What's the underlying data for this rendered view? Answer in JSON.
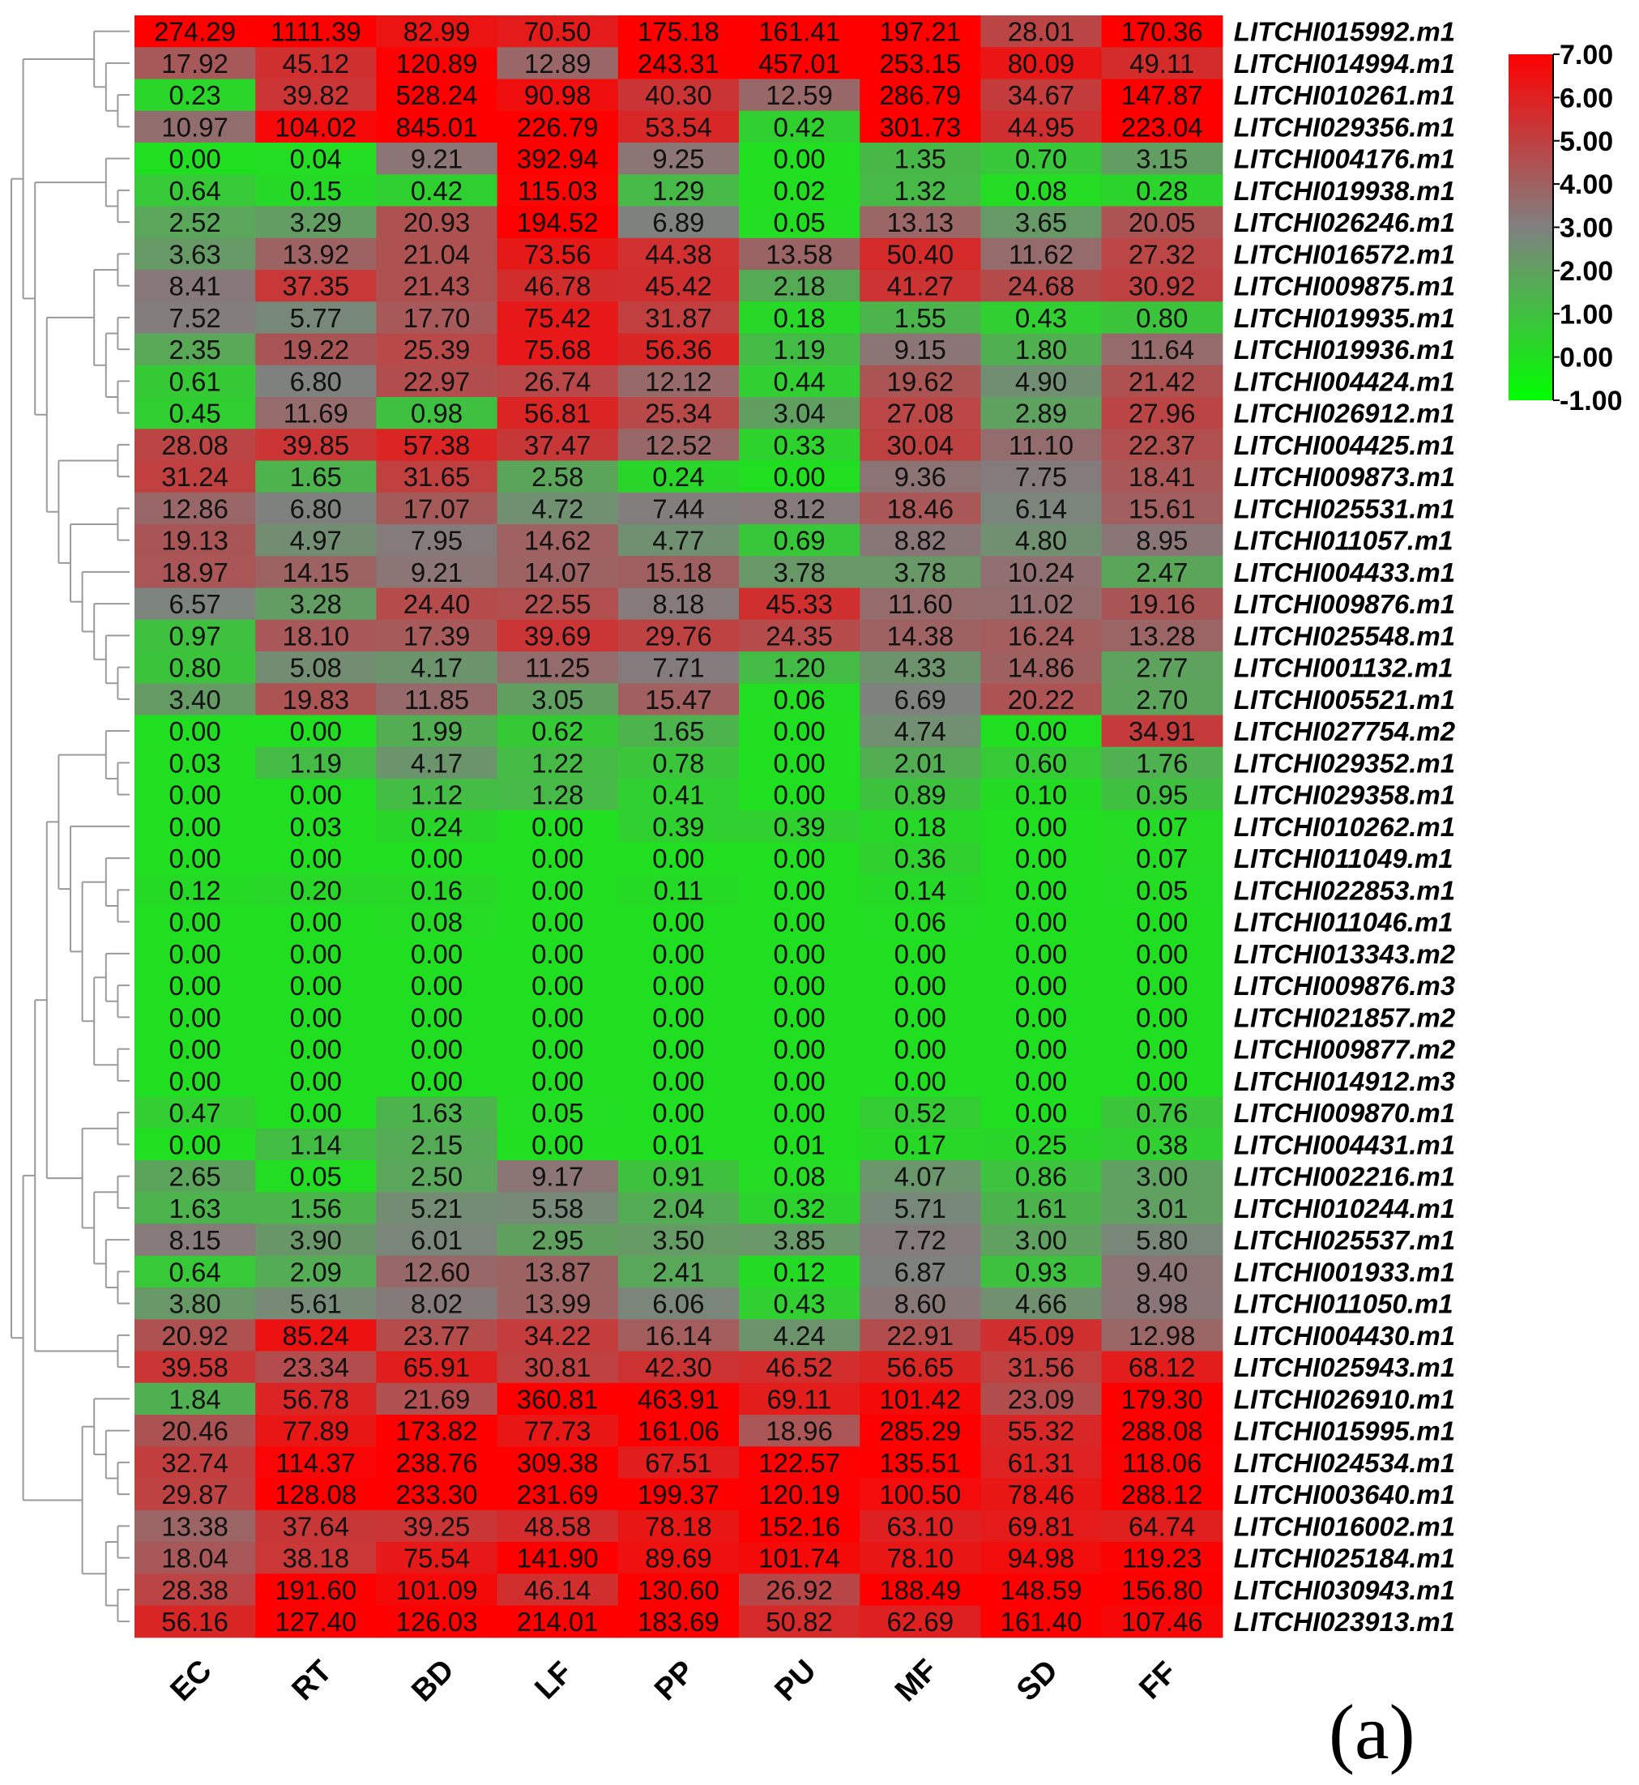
{
  "panel_label": "(a)",
  "colors": {
    "low": "#00ff00",
    "mid": "#808080",
    "high": "#ff0000",
    "tree": "#9a9a9a"
  },
  "chart_data": {
    "type": "heatmap",
    "columns": [
      "EC",
      "RT",
      "BD",
      "LF",
      "PP",
      "PU",
      "MF",
      "SD",
      "FF"
    ],
    "rows": [
      "LITCHI015992.m1",
      "LITCHI014994.m1",
      "LITCHI010261.m1",
      "LITCHI029356.m1",
      "LITCHI004176.m1",
      "LITCHI019938.m1",
      "LITCHI026246.m1",
      "LITCHI016572.m1",
      "LITCHI009875.m1",
      "LITCHI019935.m1",
      "LITCHI019936.m1",
      "LITCHI004424.m1",
      "LITCHI026912.m1",
      "LITCHI004425.m1",
      "LITCHI009873.m1",
      "LITCHI025531.m1",
      "LITCHI011057.m1",
      "LITCHI004433.m1",
      "LITCHI009876.m1",
      "LITCHI025548.m1",
      "LITCHI001132.m1",
      "LITCHI005521.m1",
      "LITCHI027754.m2",
      "LITCHI029352.m1",
      "LITCHI029358.m1",
      "LITCHI010262.m1",
      "LITCHI011049.m1",
      "LITCHI022853.m1",
      "LITCHI011046.m1",
      "LITCHI013343.m2",
      "LITCHI009876.m3",
      "LITCHI021857.m2",
      "LITCHI009877.m2",
      "LITCHI014912.m3",
      "LITCHI009870.m1",
      "LITCHI004431.m1",
      "LITCHI002216.m1",
      "LITCHI010244.m1",
      "LITCHI025537.m1",
      "LITCHI001933.m1",
      "LITCHI011050.m1",
      "LITCHI004430.m1",
      "LITCHI025943.m1",
      "LITCHI026910.m1",
      "LITCHI015995.m1",
      "LITCHI024534.m1",
      "LITCHI003640.m1",
      "LITCHI016002.m1",
      "LITCHI025184.m1",
      "LITCHI030943.m1",
      "LITCHI023913.m1"
    ],
    "values": [
      [
        "274.29",
        "1111.39",
        "82.99",
        "70.50",
        "175.18",
        "161.41",
        "197.21",
        "28.01",
        "170.36"
      ],
      [
        "17.92",
        "45.12",
        "120.89",
        "12.89",
        "243.31",
        "457.01",
        "253.15",
        "80.09",
        "49.11"
      ],
      [
        "0.23",
        "39.82",
        "528.24",
        "90.98",
        "40.30",
        "12.59",
        "286.79",
        "34.67",
        "147.87"
      ],
      [
        "10.97",
        "104.02",
        "845.01",
        "226.79",
        "53.54",
        "0.42",
        "301.73",
        "44.95",
        "223.04"
      ],
      [
        "0.00",
        "0.04",
        "9.21",
        "392.94",
        "9.25",
        "0.00",
        "1.35",
        "0.70",
        "3.15"
      ],
      [
        "0.64",
        "0.15",
        "0.42",
        "115.03",
        "1.29",
        "0.02",
        "1.32",
        "0.08",
        "0.28"
      ],
      [
        "2.52",
        "3.29",
        "20.93",
        "194.52",
        "6.89",
        "0.05",
        "13.13",
        "3.65",
        "20.05"
      ],
      [
        "3.63",
        "13.92",
        "21.04",
        "73.56",
        "44.38",
        "13.58",
        "50.40",
        "11.62",
        "27.32"
      ],
      [
        "8.41",
        "37.35",
        "21.43",
        "46.78",
        "45.42",
        "2.18",
        "41.27",
        "24.68",
        "30.92"
      ],
      [
        "7.52",
        "5.77",
        "17.70",
        "75.42",
        "31.87",
        "0.18",
        "1.55",
        "0.43",
        "0.80"
      ],
      [
        "2.35",
        "19.22",
        "25.39",
        "75.68",
        "56.36",
        "1.19",
        "9.15",
        "1.80",
        "11.64"
      ],
      [
        "0.61",
        "6.80",
        "22.97",
        "26.74",
        "12.12",
        "0.44",
        "19.62",
        "4.90",
        "21.42"
      ],
      [
        "0.45",
        "11.69",
        "0.98",
        "56.81",
        "25.34",
        "3.04",
        "27.08",
        "2.89",
        "27.96"
      ],
      [
        "28.08",
        "39.85",
        "57.38",
        "37.47",
        "12.52",
        "0.33",
        "30.04",
        "11.10",
        "22.37"
      ],
      [
        "31.24",
        "1.65",
        "31.65",
        "2.58",
        "0.24",
        "0.00",
        "9.36",
        "7.75",
        "18.41"
      ],
      [
        "12.86",
        "6.80",
        "17.07",
        "4.72",
        "7.44",
        "8.12",
        "18.46",
        "6.14",
        "15.61"
      ],
      [
        "19.13",
        "4.97",
        "7.95",
        "14.62",
        "4.77",
        "0.69",
        "8.82",
        "4.80",
        "8.95"
      ],
      [
        "18.97",
        "14.15",
        "9.21",
        "14.07",
        "15.18",
        "3.78",
        "3.78",
        "10.24",
        "2.47"
      ],
      [
        "6.57",
        "3.28",
        "24.40",
        "22.55",
        "8.18",
        "45.33",
        "11.60",
        "11.02",
        "19.16"
      ],
      [
        "0.97",
        "18.10",
        "17.39",
        "39.69",
        "29.76",
        "24.35",
        "14.38",
        "16.24",
        "13.28"
      ],
      [
        "0.80",
        "5.08",
        "4.17",
        "11.25",
        "7.71",
        "1.20",
        "4.33",
        "14.86",
        "2.77"
      ],
      [
        "3.40",
        "19.83",
        "11.85",
        "3.05",
        "15.47",
        "0.06",
        "6.69",
        "20.22",
        "2.70"
      ],
      [
        "0.00",
        "0.00",
        "1.99",
        "0.62",
        "1.65",
        "0.00",
        "4.74",
        "0.00",
        "34.91"
      ],
      [
        "0.03",
        "1.19",
        "4.17",
        "1.22",
        "0.78",
        "0.00",
        "2.01",
        "0.60",
        "1.76"
      ],
      [
        "0.00",
        "0.00",
        "1.12",
        "1.28",
        "0.41",
        "0.00",
        "0.89",
        "0.10",
        "0.95"
      ],
      [
        "0.00",
        "0.03",
        "0.24",
        "0.00",
        "0.39",
        "0.39",
        "0.18",
        "0.00",
        "0.07"
      ],
      [
        "0.00",
        "0.00",
        "0.00",
        "0.00",
        "0.00",
        "0.00",
        "0.36",
        "0.00",
        "0.07"
      ],
      [
        "0.12",
        "0.20",
        "0.16",
        "0.00",
        "0.11",
        "0.00",
        "0.14",
        "0.00",
        "0.05"
      ],
      [
        "0.00",
        "0.00",
        "0.08",
        "0.00",
        "0.00",
        "0.00",
        "0.06",
        "0.00",
        "0.00"
      ],
      [
        "0.00",
        "0.00",
        "0.00",
        "0.00",
        "0.00",
        "0.00",
        "0.00",
        "0.00",
        "0.00"
      ],
      [
        "0.00",
        "0.00",
        "0.00",
        "0.00",
        "0.00",
        "0.00",
        "0.00",
        "0.00",
        "0.00"
      ],
      [
        "0.00",
        "0.00",
        "0.00",
        "0.00",
        "0.00",
        "0.00",
        "0.00",
        "0.00",
        "0.00"
      ],
      [
        "0.00",
        "0.00",
        "0.00",
        "0.00",
        "0.00",
        "0.00",
        "0.00",
        "0.00",
        "0.00"
      ],
      [
        "0.00",
        "0.00",
        "0.00",
        "0.00",
        "0.00",
        "0.00",
        "0.00",
        "0.00",
        "0.00"
      ],
      [
        "0.47",
        "0.00",
        "1.63",
        "0.05",
        "0.00",
        "0.00",
        "0.52",
        "0.00",
        "0.76"
      ],
      [
        "0.00",
        "1.14",
        "2.15",
        "0.00",
        "0.01",
        "0.01",
        "0.17",
        "0.25",
        "0.38"
      ],
      [
        "2.65",
        "0.05",
        "2.50",
        "9.17",
        "0.91",
        "0.08",
        "4.07",
        "0.86",
        "3.00"
      ],
      [
        "1.63",
        "1.56",
        "5.21",
        "5.58",
        "2.04",
        "0.32",
        "5.71",
        "1.61",
        "3.01"
      ],
      [
        "8.15",
        "3.90",
        "6.01",
        "2.95",
        "3.50",
        "3.85",
        "7.72",
        "3.00",
        "5.80"
      ],
      [
        "0.64",
        "2.09",
        "12.60",
        "13.87",
        "2.41",
        "0.12",
        "6.87",
        "0.93",
        "9.40"
      ],
      [
        "3.80",
        "5.61",
        "8.02",
        "13.99",
        "6.06",
        "0.43",
        "8.60",
        "4.66",
        "8.98"
      ],
      [
        "20.92",
        "85.24",
        "23.77",
        "34.22",
        "16.14",
        "4.24",
        "22.91",
        "45.09",
        "12.98"
      ],
      [
        "39.58",
        "23.34",
        "65.91",
        "30.81",
        "42.30",
        "46.52",
        "56.65",
        "31.56",
        "68.12"
      ],
      [
        "1.84",
        "56.78",
        "21.69",
        "360.81",
        "463.91",
        "69.11",
        "101.42",
        "23.09",
        "179.30"
      ],
      [
        "20.46",
        "77.89",
        "173.82",
        "77.73",
        "161.06",
        "18.96",
        "285.29",
        "55.32",
        "288.08"
      ],
      [
        "32.74",
        "114.37",
        "238.76",
        "309.38",
        "67.51",
        "122.57",
        "135.51",
        "61.31",
        "118.06"
      ],
      [
        "29.87",
        "128.08",
        "233.30",
        "231.69",
        "199.37",
        "120.19",
        "100.50",
        "78.46",
        "288.12"
      ],
      [
        "13.38",
        "37.64",
        "39.25",
        "48.58",
        "78.18",
        "152.16",
        "63.10",
        "69.81",
        "64.74"
      ],
      [
        "18.04",
        "38.18",
        "75.54",
        "141.90",
        "89.69",
        "101.74",
        "78.10",
        "94.98",
        "119.23"
      ],
      [
        "28.38",
        "191.60",
        "101.09",
        "46.14",
        "130.60",
        "26.92",
        "188.49",
        "148.59",
        "156.80"
      ],
      [
        "56.16",
        "127.40",
        "126.03",
        "214.01",
        "183.69",
        "50.82",
        "62.69",
        "161.40",
        "107.46"
      ]
    ],
    "color_scale": {
      "transform": "log2(x+1)",
      "min": -1.0,
      "mid": 3.0,
      "max": 7.0,
      "tick_labels": [
        "7.00",
        "6.00",
        "5.00",
        "4.00",
        "3.00",
        "2.00",
        "1.00",
        "0.00",
        "-1.00"
      ],
      "position": "top-right"
    },
    "row_dendrogram": {
      "side": "left",
      "note_free": true
    }
  }
}
